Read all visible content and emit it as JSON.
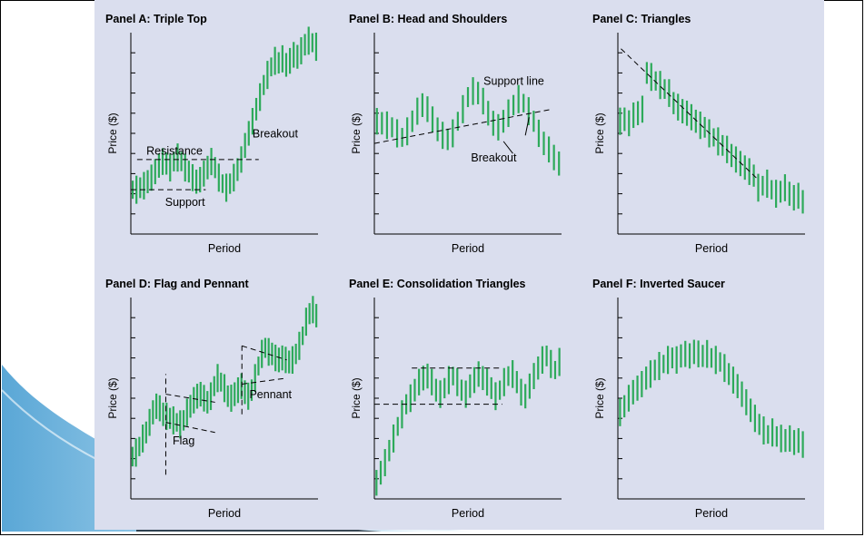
{
  "colors": {
    "series": "#2daa5a",
    "background": "#dadeee",
    "axis": "#000000",
    "swoosh": "#4aa3d4"
  },
  "chart_data": [
    {
      "type": "line",
      "title": "Panel A: Triple Top",
      "xlabel": "Period",
      "ylabel": "Price ($)",
      "x_range": [
        0,
        30
      ],
      "y_range": [
        0,
        10
      ],
      "series": [
        {
          "values": [
            2.2,
            2.2,
            2.3,
            2.4,
            2.6,
            2.8,
            3.1,
            3.4,
            3.6,
            3.5,
            3.3,
            3.6,
            3.8,
            3.6,
            3.3,
            3.1,
            2.8,
            2.6,
            2.7,
            3.0,
            3.3,
            3.6,
            3.3,
            2.8,
            2.5,
            2.3,
            2.5,
            2.8,
            3.2,
            3.7,
            4.4,
            5.0,
            5.6,
            6.2,
            6.8,
            7.4,
            7.9,
            8.3,
            8.6,
            8.5,
            8.7,
            8.4,
            8.6,
            8.9,
            8.8,
            9.1,
            9.4,
            9.6,
            9.5,
            9.3
          ]
        }
      ],
      "lines": [
        {
          "x": [
            1,
            20.5
          ],
          "y": [
            3.7,
            3.7
          ],
          "style": "dashed"
        },
        {
          "x": [
            0,
            12
          ],
          "y": [
            2.2,
            2.2
          ],
          "style": "dashed"
        }
      ],
      "annotations": [
        {
          "text": "Resistance",
          "x": 2.5,
          "y": 3.95
        },
        {
          "text": "Breakout",
          "x": 19.5,
          "y": 4.8
        },
        {
          "text": "Support",
          "x": 5.5,
          "y": 1.4
        }
      ]
    },
    {
      "type": "line",
      "title": "Panel B: Head and Shoulders",
      "xlabel": "Period",
      "ylabel": "Price ($)",
      "x_range": [
        0,
        30
      ],
      "y_range": [
        0,
        10
      ],
      "series": [
        {
          "values": [
            5.6,
            5.5,
            5.4,
            5.3,
            5.0,
            4.8,
            5.1,
            5.6,
            6.1,
            6.4,
            6.2,
            5.7,
            5.2,
            4.9,
            4.7,
            5.0,
            5.6,
            6.2,
            6.8,
            7.1,
            7.0,
            6.6,
            6.0,
            5.5,
            5.3,
            5.6,
            6.0,
            6.4,
            6.7,
            6.5,
            6.1,
            5.6,
            5.0,
            4.5,
            4.2,
            3.8,
            3.5
          ]
        }
      ],
      "lines": [
        {
          "x": [
            0,
            28.5
          ],
          "y": [
            4.5,
            6.2
          ],
          "style": "dashed"
        },
        {
          "x": [
            24.2,
            24.8
          ],
          "y": [
            4.9,
            5.8
          ],
          "style": "solid"
        },
        {
          "x": [
            20.7,
            22.2
          ],
          "y": [
            4.6,
            4.0
          ],
          "style": "solid"
        }
      ],
      "annotations": [
        {
          "text": "Support line",
          "x": 17.5,
          "y": 7.4
        },
        {
          "text": "Breakout",
          "x": 15.5,
          "y": 3.6
        }
      ]
    },
    {
      "type": "line",
      "title": "Panel C: Triangles",
      "xlabel": "Period",
      "ylabel": "Price ($)",
      "x_range": [
        0,
        30
      ],
      "y_range": [
        0,
        10
      ],
      "series": [
        {
          "values": [
            5.6,
            5.7,
            5.5,
            5.9,
            6.0,
            6.2,
            8.0,
            7.8,
            7.6,
            7.4,
            7.2,
            7.0,
            6.5,
            6.3,
            6.1,
            6.0,
            5.8,
            5.6,
            5.4,
            5.3,
            5.0,
            4.8,
            4.6,
            4.4,
            4.2,
            3.9,
            3.7,
            3.5,
            3.3,
            3.1,
            2.9,
            2.3,
            2.4,
            2.5,
            2.2,
            2.0,
            2.1,
            2.3,
            2.0,
            1.8,
            1.9,
            1.6
          ]
        }
      ],
      "lines": [
        {
          "x": [
            0.5,
            22.5
          ],
          "y": [
            9.2,
            2.7
          ],
          "style": "dashed"
        }
      ],
      "annotations": []
    },
    {
      "type": "line",
      "title": "Panel D: Flag and Pennant",
      "xlabel": "Period",
      "ylabel": "Price ($)",
      "x_range": [
        0,
        30
      ],
      "y_range": [
        0,
        10
      ],
      "series": [
        {
          "values": [
            2.1,
            2.3,
            2.6,
            3.0,
            3.3,
            3.8,
            4.3,
            4.6,
            4.5,
            4.2,
            4.1,
            4.0,
            3.9,
            3.8,
            3.7,
            3.9,
            4.3,
            4.6,
            4.9,
            5.1,
            5.2,
            5.0,
            4.8,
            5.1,
            5.6,
            6.0,
            5.8,
            5.5,
            5.1,
            5.0,
            5.2,
            5.4,
            5.6,
            5.3,
            5.1,
            5.4,
            6.0,
            6.6,
            7.2,
            7.5,
            7.3,
            7.2,
            7.0,
            6.9,
            7.0,
            6.9,
            6.8,
            6.9,
            7.2,
            7.6,
            8.1,
            8.8,
            9.2,
            9.4,
            9.1
          ]
        }
      ],
      "lines": [
        {
          "x": [
            5.6,
            5.6
          ],
          "y": [
            1.2,
            6.2
          ],
          "style": "dashed"
        },
        {
          "x": [
            5.6,
            13.5
          ],
          "y": [
            5.2,
            4.8
          ],
          "style": "dashed"
        },
        {
          "x": [
            5.6,
            13.5
          ],
          "y": [
            3.8,
            3.3
          ],
          "style": "dashed"
        },
        {
          "x": [
            17.8,
            17.8
          ],
          "y": [
            4.2,
            7.6
          ],
          "style": "dashed"
        },
        {
          "x": [
            17.8,
            25
          ],
          "y": [
            7.6,
            6.9
          ],
          "style": "dashed"
        },
        {
          "x": [
            17.8,
            25
          ],
          "y": [
            5.7,
            6.0
          ],
          "style": "dashed"
        }
      ],
      "annotations": [
        {
          "text": "Flag",
          "x": 6.7,
          "y": 2.7
        },
        {
          "text": "Pennant",
          "x": 19.0,
          "y": 5.0
        }
      ]
    },
    {
      "type": "line",
      "title": "Panel E: Consolidation Triangles",
      "xlabel": "Period",
      "ylabel": "Price ($)",
      "x_range": [
        0,
        30
      ],
      "y_range": [
        0,
        10
      ],
      "series": [
        {
          "values": [
            0.8,
            1.3,
            1.8,
            2.4,
            3.0,
            3.6,
            4.2,
            4.7,
            5.0,
            5.4,
            5.8,
            6.0,
            6.1,
            5.8,
            5.4,
            5.2,
            5.5,
            5.9,
            6.1,
            5.8,
            5.4,
            5.2,
            5.6,
            5.9,
            6.2,
            6.0,
            5.8,
            5.5,
            5.1,
            5.4,
            5.8,
            6.1,
            6.2,
            5.8,
            5.3,
            5.1,
            5.6,
            6.1,
            6.5,
            6.9,
            7.1,
            6.7,
            6.4,
            6.8
          ]
        }
      ],
      "lines": [
        {
          "x": [
            6,
            20.5
          ],
          "y": [
            6.5,
            6.5
          ],
          "style": "dashed"
        },
        {
          "x": [
            0,
            20.5
          ],
          "y": [
            4.7,
            4.7
          ],
          "style": "dashed"
        }
      ],
      "annotations": []
    },
    {
      "type": "line",
      "title": "Panel F: Inverted Saucer",
      "xlabel": "Period",
      "ylabel": "Price ($)",
      "x_range": [
        0,
        30
      ],
      "y_range": [
        0,
        10
      ],
      "series": [
        {
          "values": [
            4.3,
            4.6,
            5.0,
            5.3,
            5.5,
            5.7,
            6.0,
            6.2,
            6.4,
            6.6,
            6.7,
            6.9,
            7.0,
            6.9,
            7.1,
            7.2,
            7.1,
            7.3,
            7.2,
            7.1,
            7.2,
            7.0,
            6.9,
            6.8,
            6.5,
            6.2,
            5.9,
            5.6,
            5.2,
            4.8,
            4.4,
            4.0,
            3.7,
            3.4,
            3.2,
            3.3,
            3.1,
            3.0,
            2.9,
            3.0,
            2.8,
            2.9,
            2.7
          ]
        }
      ],
      "lines": [],
      "annotations": []
    }
  ]
}
